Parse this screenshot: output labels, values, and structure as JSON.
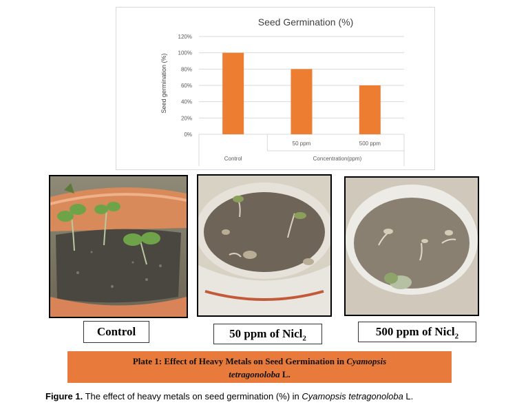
{
  "chart_data": {
    "type": "bar",
    "title": "Seed Germination (%)",
    "ylabel": "Seed germination (%)",
    "xlabel": "Concentration(ppm)",
    "categories": [
      "Control",
      "50 ppm",
      "500 ppm"
    ],
    "values": [
      100,
      80,
      60
    ],
    "ylim": [
      0,
      120
    ],
    "yticks": [
      "0%",
      "20%",
      "40%",
      "60%",
      "80%",
      "100%",
      "120%"
    ],
    "grid": true,
    "legend": "none",
    "bar_color": "#ed7d31"
  },
  "photos": [
    {
      "id": "control",
      "caption": "Control"
    },
    {
      "id": "50ppm",
      "caption_main": "50 ppm of Nicl",
      "caption_sub": "2"
    },
    {
      "id": "500ppm",
      "caption_main": "500 ppm of Nicl",
      "caption_sub": "2"
    }
  ],
  "plate": {
    "prefix": "Plate 1: Effect of Heavy Metals on Seed Germination in ",
    "species_genus": "Cyamopsis",
    "species_epithet": "tetragonoloba",
    "suffix": " L."
  },
  "figure": {
    "label": "Figure 1.",
    "text": " The effect of heavy metals on seed germination (%) in ",
    "species": "Cyamopsis tetragonoloba",
    "suffix": " L."
  },
  "colors": {
    "bar": "#ed7d31",
    "banner": "#e87a3c",
    "grid": "#d9d9d9"
  }
}
